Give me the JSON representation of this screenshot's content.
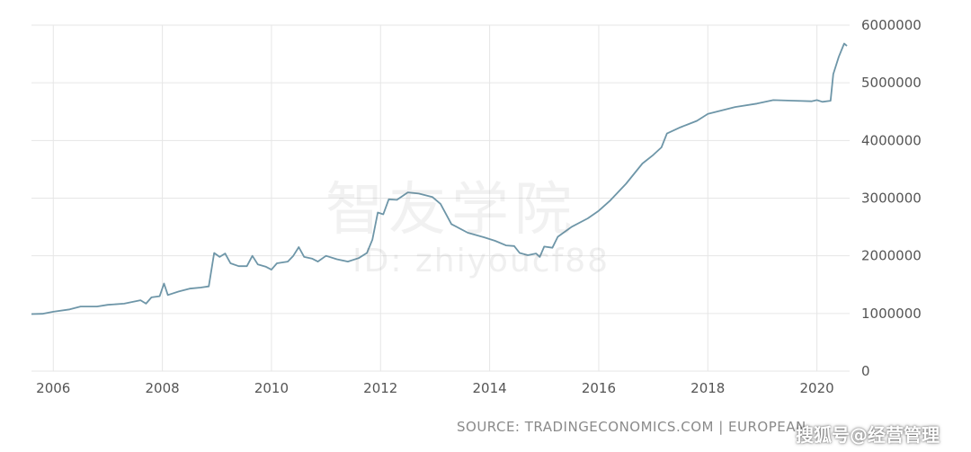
{
  "chart_data": {
    "type": "line",
    "title": "",
    "xlabel": "",
    "ylabel": "",
    "x_ticks": [
      "2006",
      "2008",
      "2010",
      "2012",
      "2014",
      "2016",
      "2018",
      "2020"
    ],
    "y_ticks": [
      "0",
      "1000000",
      "2000000",
      "3000000",
      "4000000",
      "5000000",
      "6000000"
    ],
    "xlim": [
      2005.6,
      2020.6
    ],
    "ylim": [
      0,
      6000000
    ],
    "grid": true,
    "series": [
      {
        "color": "#6e96a8",
        "points": [
          [
            2005.6,
            990000
          ],
          [
            2005.8,
            995000
          ],
          [
            2006.0,
            1030000
          ],
          [
            2006.3,
            1070000
          ],
          [
            2006.5,
            1120000
          ],
          [
            2006.8,
            1120000
          ],
          [
            2007.0,
            1150000
          ],
          [
            2007.3,
            1170000
          ],
          [
            2007.6,
            1230000
          ],
          [
            2007.7,
            1170000
          ],
          [
            2007.8,
            1280000
          ],
          [
            2007.95,
            1300000
          ],
          [
            2008.03,
            1520000
          ],
          [
            2008.1,
            1320000
          ],
          [
            2008.3,
            1380000
          ],
          [
            2008.5,
            1430000
          ],
          [
            2008.7,
            1450000
          ],
          [
            2008.85,
            1470000
          ],
          [
            2008.95,
            2050000
          ],
          [
            2009.05,
            1980000
          ],
          [
            2009.15,
            2040000
          ],
          [
            2009.25,
            1870000
          ],
          [
            2009.4,
            1820000
          ],
          [
            2009.55,
            1820000
          ],
          [
            2009.65,
            2000000
          ],
          [
            2009.75,
            1850000
          ],
          [
            2009.9,
            1810000
          ],
          [
            2010.0,
            1760000
          ],
          [
            2010.1,
            1870000
          ],
          [
            2010.3,
            1900000
          ],
          [
            2010.4,
            2000000
          ],
          [
            2010.5,
            2150000
          ],
          [
            2010.6,
            1980000
          ],
          [
            2010.75,
            1950000
          ],
          [
            2010.85,
            1900000
          ],
          [
            2011.0,
            2000000
          ],
          [
            2011.2,
            1940000
          ],
          [
            2011.4,
            1900000
          ],
          [
            2011.6,
            1960000
          ],
          [
            2011.75,
            2050000
          ],
          [
            2011.85,
            2280000
          ],
          [
            2011.95,
            2750000
          ],
          [
            2012.05,
            2720000
          ],
          [
            2012.15,
            2980000
          ],
          [
            2012.3,
            2970000
          ],
          [
            2012.5,
            3100000
          ],
          [
            2012.7,
            3080000
          ],
          [
            2012.95,
            3020000
          ],
          [
            2013.1,
            2900000
          ],
          [
            2013.3,
            2550000
          ],
          [
            2013.6,
            2400000
          ],
          [
            2013.9,
            2320000
          ],
          [
            2014.1,
            2260000
          ],
          [
            2014.3,
            2180000
          ],
          [
            2014.45,
            2170000
          ],
          [
            2014.55,
            2050000
          ],
          [
            2014.7,
            2010000
          ],
          [
            2014.85,
            2040000
          ],
          [
            2014.92,
            1980000
          ],
          [
            2015.0,
            2160000
          ],
          [
            2015.15,
            2140000
          ],
          [
            2015.25,
            2330000
          ],
          [
            2015.5,
            2500000
          ],
          [
            2015.8,
            2650000
          ],
          [
            2016.0,
            2780000
          ],
          [
            2016.2,
            2950000
          ],
          [
            2016.5,
            3250000
          ],
          [
            2016.8,
            3600000
          ],
          [
            2017.0,
            3750000
          ],
          [
            2017.15,
            3880000
          ],
          [
            2017.25,
            4120000
          ],
          [
            2017.5,
            4230000
          ],
          [
            2017.8,
            4340000
          ],
          [
            2018.0,
            4460000
          ],
          [
            2018.5,
            4580000
          ],
          [
            2018.9,
            4640000
          ],
          [
            2019.2,
            4700000
          ],
          [
            2019.6,
            4690000
          ],
          [
            2019.9,
            4680000
          ],
          [
            2020.0,
            4700000
          ],
          [
            2020.1,
            4670000
          ],
          [
            2020.25,
            4690000
          ],
          [
            2020.3,
            5150000
          ],
          [
            2020.4,
            5450000
          ],
          [
            2020.5,
            5680000
          ],
          [
            2020.55,
            5640000
          ]
        ]
      }
    ]
  },
  "watermark": {
    "text_cn": "智友学院",
    "text_id": "ID: zhiyoucf88"
  },
  "footer": {
    "source": "SOURCE: TRADINGECONOMICS.COM | EUROPEAN",
    "sohu": "搜狐号@经营管理"
  }
}
